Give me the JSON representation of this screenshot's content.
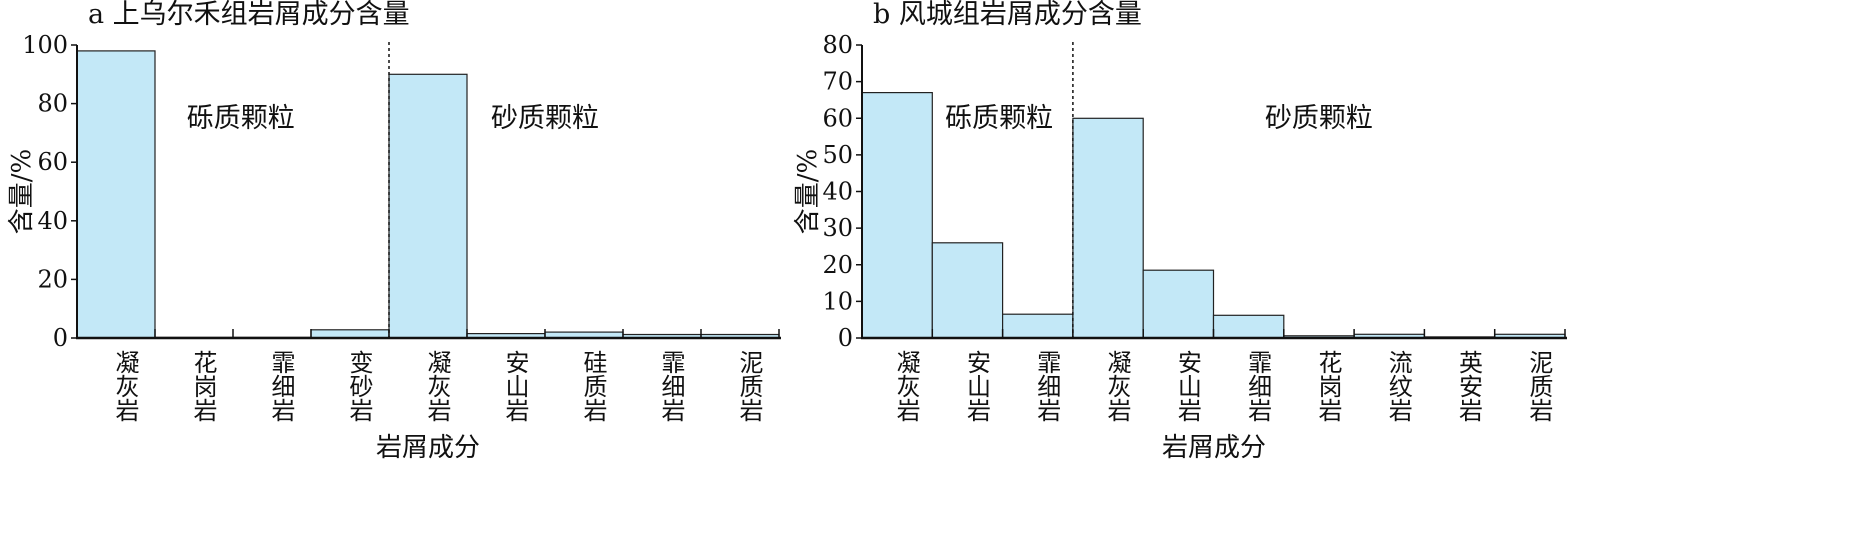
{
  "chart_data": [
    {
      "type": "bar",
      "title": "a 上乌尔禾组岩屑成分含量",
      "ylabel": "含量/%",
      "xlabel": "岩屑成分",
      "ylim": [
        0,
        100
      ],
      "yticks": [
        0,
        20,
        40,
        60,
        80,
        100
      ],
      "categories": [
        "凝灰岩",
        "花岗岩",
        "霏细岩",
        "变砂岩",
        "凝灰岩",
        "安山岩",
        "硅质岩",
        "霏细岩",
        "泥质岩"
      ],
      "values": [
        98,
        0.2,
        0.2,
        2.8,
        90,
        1.5,
        2,
        1.2,
        1.2
      ],
      "groups": [
        {
          "label": "砾质颗粒",
          "count": 4
        },
        {
          "label": "砂质颗粒",
          "count": 5
        }
      ],
      "grid": false,
      "bar_color": "#c3e8f7"
    },
    {
      "type": "bar",
      "title": "b 风城组岩屑成分含量",
      "ylabel": "含量/%",
      "xlabel": "岩屑成分",
      "ylim": [
        0,
        80
      ],
      "yticks": [
        0,
        10,
        20,
        30,
        40,
        50,
        60,
        70,
        80
      ],
      "categories": [
        "凝灰岩",
        "安山岩",
        "霏细岩",
        "凝灰岩",
        "安山岩",
        "霏细岩",
        "花岗岩",
        "流纹岩",
        "英安岩",
        "泥质岩"
      ],
      "values": [
        67,
        26,
        6.5,
        60,
        18.5,
        6.2,
        0.6,
        1,
        0.3,
        1
      ],
      "groups": [
        {
          "label": "砾质颗粒",
          "count": 3
        },
        {
          "label": "砂质颗粒",
          "count": 7
        }
      ],
      "grid": false,
      "bar_color": "#c3e8f7"
    }
  ]
}
